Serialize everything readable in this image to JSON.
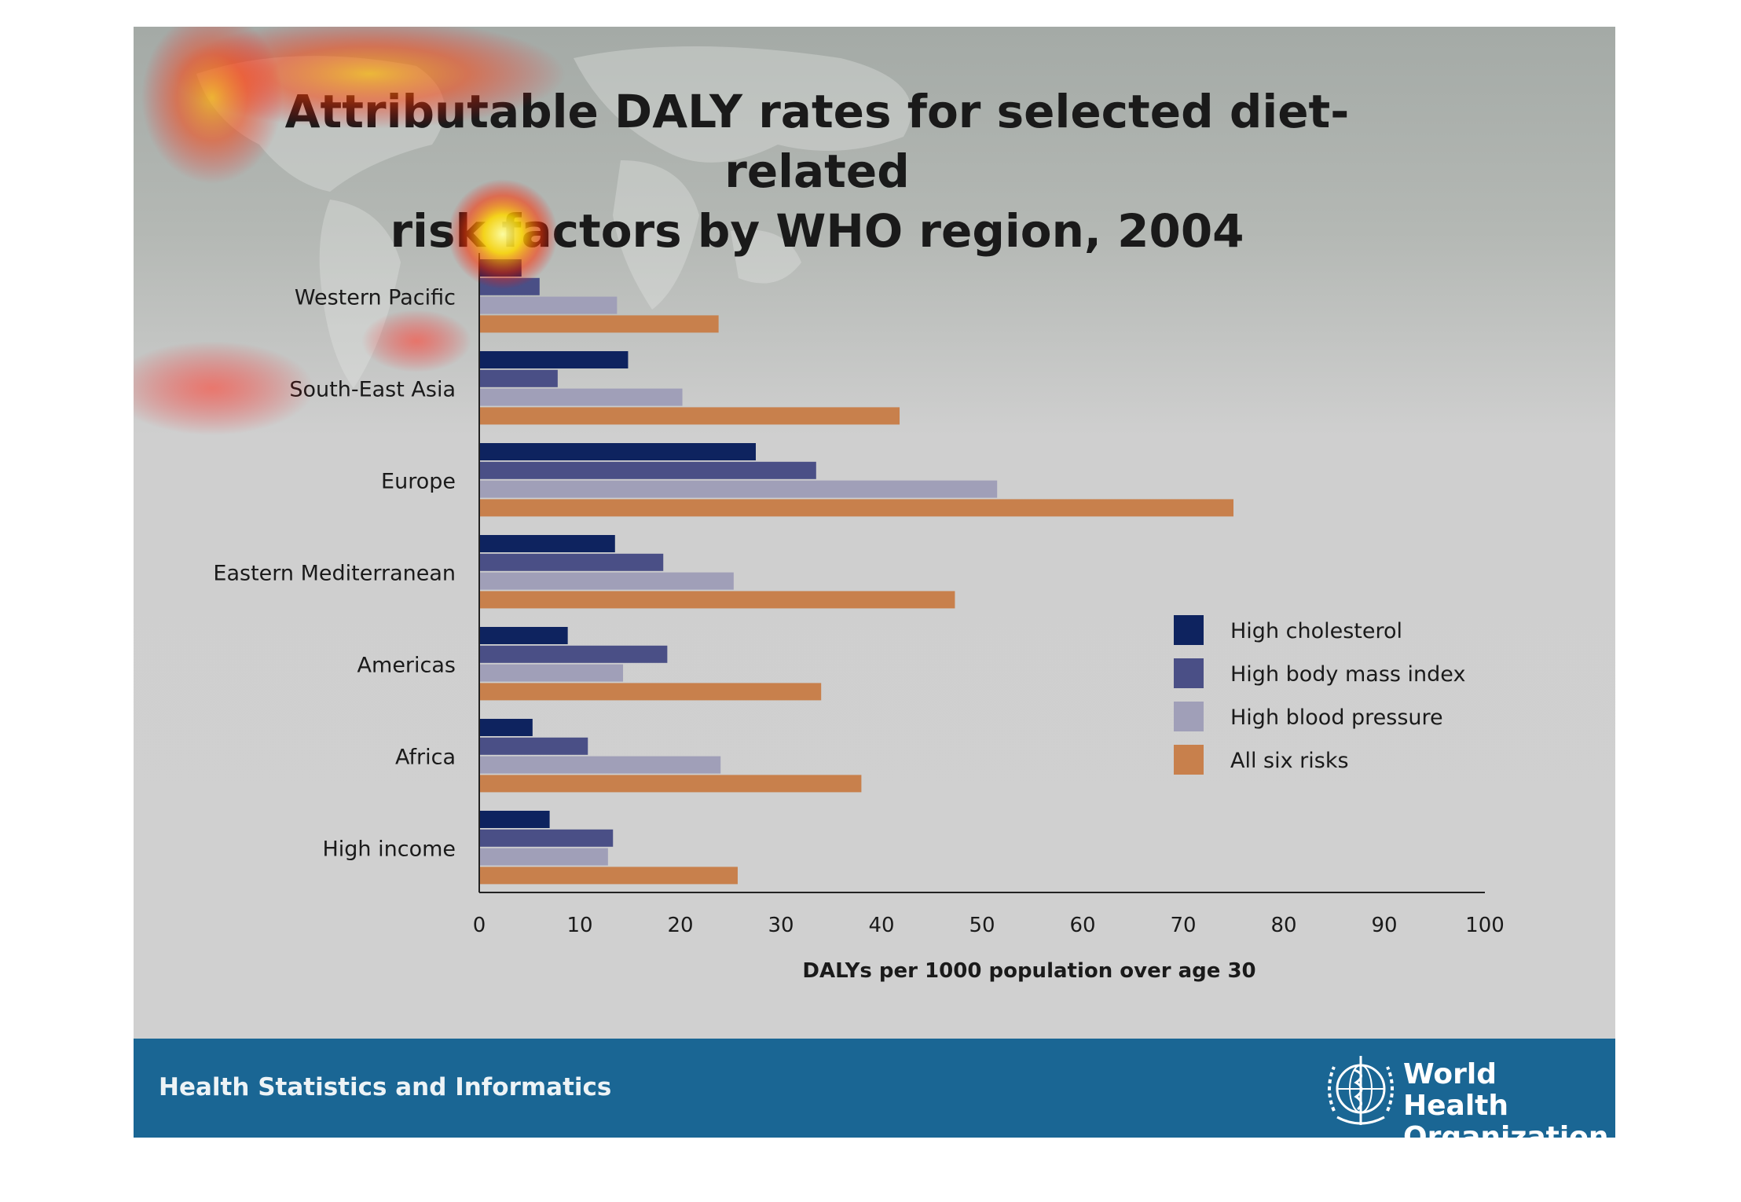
{
  "chart_data": {
    "type": "bar",
    "orientation": "horizontal",
    "title": "Attributable DALY rates for selected diet-related risk factors by WHO region, 2004",
    "title_lines": [
      "Attributable DALY rates for selected diet-related",
      "risk factors by WHO region, 2004"
    ],
    "xlabel": "DALYs per 1000 population over age 30",
    "ylabel": "",
    "xlim": [
      0,
      100
    ],
    "x_ticks": [
      "0",
      "10",
      "20",
      "30",
      "40",
      "50",
      "60",
      "70",
      "80",
      "90",
      "100"
    ],
    "categories": [
      "Western Pacific",
      "South-East Asia",
      "Europe",
      "Eastern Mediterranean",
      "Americas",
      "Africa",
      "High income"
    ],
    "series": [
      {
        "name": "High cholesterol",
        "color": "#0e235f",
        "values": [
          4.2,
          14.8,
          27.5,
          13.5,
          8.8,
          5.3,
          7.0
        ]
      },
      {
        "name": "High body mass index",
        "color": "#4a4f86",
        "values": [
          6.0,
          7.8,
          33.5,
          18.3,
          18.7,
          10.8,
          13.3
        ]
      },
      {
        "name": "High blood pressure",
        "color": "#a09fb8",
        "values": [
          13.7,
          20.2,
          51.5,
          25.3,
          14.3,
          24.0,
          12.8
        ]
      },
      {
        "name": "All six risks",
        "color": "#c8804c",
        "values": [
          23.8,
          41.8,
          75.0,
          47.3,
          34.0,
          38.0,
          25.7
        ]
      }
    ],
    "grid": false,
    "legend_position": "right"
  },
  "footer": {
    "section_label": "Health Statistics and Informatics",
    "org_line1": "World Health",
    "org_line2": "Organization"
  },
  "colors": {
    "footer_bar": "#1a6694",
    "axis": "#222222"
  }
}
